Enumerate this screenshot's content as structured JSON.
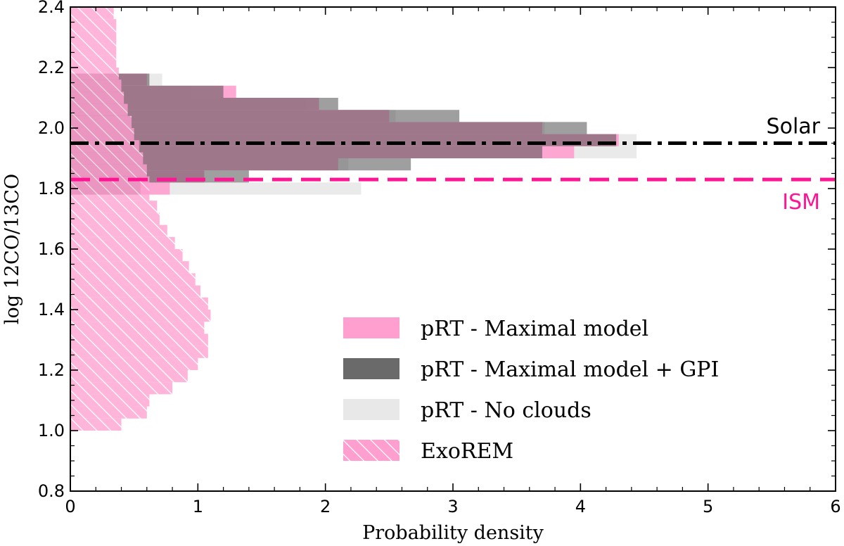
{
  "chart_data": {
    "type": "histogram",
    "orientation": "horizontal",
    "title": "",
    "xlabel": "Probability density",
    "ylabel": "log 12CO/13CO",
    "xlim": [
      0,
      6
    ],
    "ylim": [
      0.8,
      2.4
    ],
    "xticks": [
      "0",
      "1",
      "2",
      "3",
      "4",
      "5",
      "6"
    ],
    "yticks": [
      "0.8",
      "1.0",
      "1.2",
      "1.4",
      "1.6",
      "1.8",
      "2.0",
      "2.2",
      "2.4"
    ],
    "grid": false,
    "legend_position": "lower-right",
    "colors": {
      "maximal": "#ff9fcf",
      "maximal_gpi": "#505050",
      "no_clouds": "#e8e8e8",
      "exorem": "#ff9fcf",
      "solar_line": "#000000",
      "ism_line": "#ff1493"
    },
    "reference_lines": [
      {
        "label": "Solar",
        "y": 1.95,
        "style": "dash-dot",
        "color": "#000000"
      },
      {
        "label": "ISM",
        "y": 1.83,
        "style": "dashed",
        "color": "#ff1493"
      }
    ],
    "series": [
      {
        "name": "pRT - No clouds",
        "key": "no_clouds",
        "bin_edges": [
          1.78,
          1.82,
          1.86,
          1.9,
          1.94,
          1.98,
          2.02,
          2.06,
          2.1,
          2.14,
          2.18
        ],
        "density": [
          2.28,
          1.05,
          2.18,
          4.44,
          4.44,
          3.72,
          2.55,
          1.85,
          0.95,
          0.72
        ]
      },
      {
        "name": "pRT - Maximal model",
        "key": "maximal",
        "bin_edges": [
          1.78,
          1.82,
          1.86,
          1.9,
          1.94,
          1.98,
          2.02,
          2.06,
          2.1,
          2.14,
          2.18
        ],
        "density": [
          0.78,
          1.05,
          2.1,
          3.95,
          4.3,
          3.7,
          2.5,
          1.95,
          1.3,
          0.6
        ]
      },
      {
        "name": "pRT - Maximal model + GPI",
        "key": "maximal_gpi",
        "bin_edges": [
          1.78,
          1.82,
          1.86,
          1.9,
          1.94,
          1.98,
          2.02,
          2.06,
          2.1,
          2.14,
          2.18
        ],
        "density": [
          0.55,
          1.4,
          2.67,
          3.7,
          4.28,
          4.05,
          3.05,
          2.1,
          1.2,
          0.62
        ]
      },
      {
        "name": "ExoREM",
        "key": "exorem",
        "bin_edges": [
          1.0,
          1.04,
          1.08,
          1.12,
          1.16,
          1.2,
          1.24,
          1.28,
          1.32,
          1.36,
          1.4,
          1.44,
          1.48,
          1.52,
          1.56,
          1.6,
          1.64,
          1.68,
          1.72,
          1.76,
          1.8,
          1.84,
          1.88,
          1.92,
          1.96,
          2.0,
          2.04,
          2.08,
          2.12,
          2.16,
          2.2,
          2.24,
          2.28,
          2.32,
          2.36,
          2.4
        ],
        "density": [
          0.4,
          0.6,
          0.62,
          0.8,
          0.92,
          1.0,
          1.08,
          1.08,
          1.05,
          1.1,
          1.08,
          1.02,
          0.98,
          0.93,
          0.88,
          0.82,
          0.76,
          0.7,
          0.68,
          0.62,
          0.62,
          0.6,
          0.57,
          0.54,
          0.5,
          0.48,
          0.45,
          0.42,
          0.4,
          0.38,
          0.36,
          0.36,
          0.36,
          0.36,
          0.34
        ]
      }
    ]
  }
}
